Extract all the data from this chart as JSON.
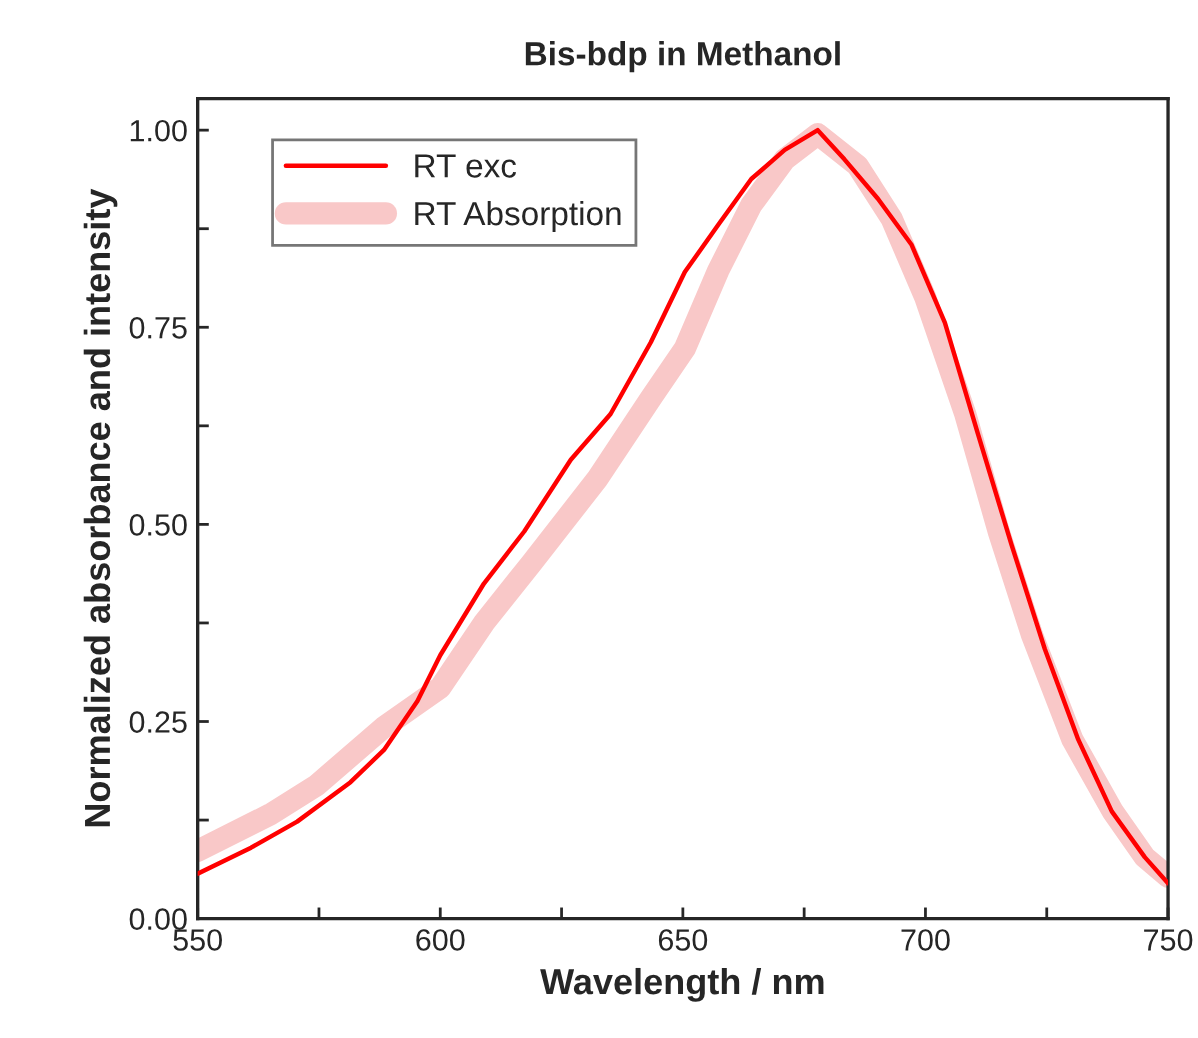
{
  "chart_data": {
    "type": "line",
    "title": "Bis-bdp in Methanol",
    "xlabel": "Wavelength / nm",
    "ylabel": "Normalized absorbance and intensity",
    "xlim": [
      550,
      750
    ],
    "ylim": [
      0,
      1.04
    ],
    "xticks": [
      550,
      {
        "value": 575,
        "label": null
      },
      600,
      {
        "value": 625,
        "label": null
      },
      650,
      {
        "value": 675,
        "label": null
      },
      700,
      {
        "value": 725,
        "label": null
      },
      750
    ],
    "yticks": [
      {
        "value": 0,
        "label": "0.00"
      },
      {
        "value": 0.125,
        "label": null
      },
      {
        "value": 0.25,
        "label": "0.25"
      },
      {
        "value": 0.375,
        "label": null
      },
      {
        "value": 0.5,
        "label": "0.50"
      },
      {
        "value": 0.625,
        "label": null
      },
      {
        "value": 0.75,
        "label": "0.75"
      },
      {
        "value": 0.875,
        "label": null
      },
      {
        "value": 1.0,
        "label": "1.00"
      }
    ],
    "grid": false,
    "legend": "top left",
    "marker": "none",
    "series": [
      {
        "name": "RT exc",
        "color": "#ff0000",
        "x": [
          550,
          561,
          570.5,
          581.5,
          588.4,
          595.3,
          600,
          609,
          617.3,
          626.9,
          635.1,
          643.4,
          650.4,
          657.3,
          664.1,
          671,
          677.8,
          683.3,
          690.2,
          697.1,
          704,
          710.8,
          717.7,
          724.6,
          731.5,
          738.4,
          745.2,
          750
        ],
        "values": [
          0.057,
          0.09,
          0.123,
          0.173,
          0.214,
          0.276,
          0.334,
          0.425,
          0.491,
          0.582,
          0.64,
          0.731,
          0.82,
          0.88,
          0.938,
          0.975,
          1.0,
          0.963,
          0.913,
          0.855,
          0.756,
          0.615,
          0.475,
          0.342,
          0.227,
          0.136,
          0.078,
          0.045
        ]
      },
      {
        "name": "RT Absorption",
        "color": "#f9c8c8",
        "x": [
          550,
          564.9,
          574.5,
          588.4,
          600,
          609,
          618.7,
          632.4,
          643.4,
          650.4,
          657.3,
          664.1,
          671,
          677.8,
          686,
          693,
          699.9,
          708.2,
          715.1,
          722,
          730.3,
          738.6,
          745.2,
          750
        ],
        "values": [
          0.086,
          0.132,
          0.169,
          0.243,
          0.293,
          0.375,
          0.45,
          0.558,
          0.66,
          0.723,
          0.822,
          0.905,
          0.963,
          0.995,
          0.955,
          0.888,
          0.789,
          0.64,
          0.491,
          0.359,
          0.227,
          0.136,
          0.078,
          0.053
        ]
      }
    ]
  }
}
